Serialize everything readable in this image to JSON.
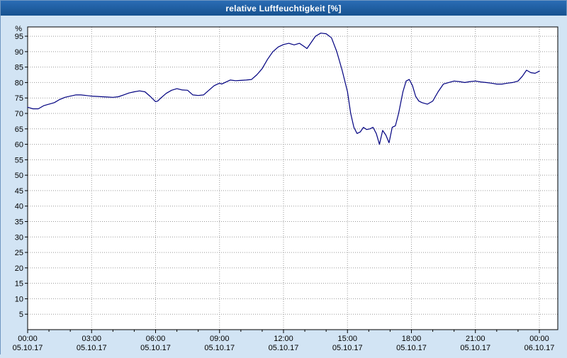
{
  "title_bar": {
    "title": "relative Luftfeuchtigkeit [%]"
  },
  "colors": {
    "title_bar_bg": "#1b5ca8",
    "title_text": "#ffffff",
    "window_bg": "#d2e4f4",
    "plot_bg": "#ffffff",
    "grid": "#999999",
    "axis": "#000000",
    "line": "#000080"
  },
  "chart_data": {
    "type": "line",
    "title": "relative Luftfeuchtigkeit [%]",
    "xlabel": "",
    "ylabel": "%",
    "ylim": [
      0,
      98
    ],
    "x_hours_range": [
      0,
      24
    ],
    "grid": true,
    "legend_position": "none",
    "yticks": [
      5,
      10,
      15,
      20,
      25,
      30,
      35,
      40,
      45,
      50,
      55,
      60,
      65,
      70,
      75,
      80,
      85,
      90,
      95
    ],
    "xticks": [
      {
        "hour": 0,
        "time": "00:00",
        "date": "05.10.17"
      },
      {
        "hour": 3,
        "time": "03:00",
        "date": "05.10.17"
      },
      {
        "hour": 6,
        "time": "06:00",
        "date": "05.10.17"
      },
      {
        "hour": 9,
        "time": "09:00",
        "date": "05.10.17"
      },
      {
        "hour": 12,
        "time": "12:00",
        "date": "05.10.17"
      },
      {
        "hour": 15,
        "time": "15:00",
        "date": "05.10.17"
      },
      {
        "hour": 18,
        "time": "18:00",
        "date": "05.10.17"
      },
      {
        "hour": 21,
        "time": "21:00",
        "date": "05.10.17"
      },
      {
        "hour": 24,
        "time": "00:00",
        "date": "06.10.17"
      }
    ],
    "series": [
      {
        "name": "relative Luftfeuchtigkeit [%]",
        "color": "#000080",
        "points": [
          [
            0,
            72
          ],
          [
            0.25,
            71.5
          ],
          [
            0.5,
            71.5
          ],
          [
            0.75,
            72.5
          ],
          [
            1,
            73
          ],
          [
            1.25,
            73.5
          ],
          [
            1.5,
            74.5
          ],
          [
            1.75,
            75.2
          ],
          [
            2,
            75.6
          ],
          [
            2.25,
            76
          ],
          [
            2.5,
            76
          ],
          [
            2.75,
            75.8
          ],
          [
            3,
            75.6
          ],
          [
            3.25,
            75.5
          ],
          [
            3.5,
            75.4
          ],
          [
            3.75,
            75.3
          ],
          [
            4,
            75.2
          ],
          [
            4.25,
            75.4
          ],
          [
            4.5,
            76
          ],
          [
            4.75,
            76.6
          ],
          [
            5,
            77
          ],
          [
            5.25,
            77.3
          ],
          [
            5.5,
            77
          ],
          [
            5.75,
            75.5
          ],
          [
            6,
            73.8
          ],
          [
            6.1,
            74
          ],
          [
            6.25,
            75
          ],
          [
            6.5,
            76.5
          ],
          [
            6.75,
            77.5
          ],
          [
            7,
            78
          ],
          [
            7.25,
            77.6
          ],
          [
            7.5,
            77.5
          ],
          [
            7.75,
            76
          ],
          [
            8,
            75.8
          ],
          [
            8.25,
            76
          ],
          [
            8.5,
            77.5
          ],
          [
            8.75,
            79
          ],
          [
            9,
            79.8
          ],
          [
            9.1,
            79.5
          ],
          [
            9.25,
            80
          ],
          [
            9.5,
            80.8
          ],
          [
            9.75,
            80.6
          ],
          [
            10,
            80.7
          ],
          [
            10.25,
            80.8
          ],
          [
            10.5,
            81
          ],
          [
            10.75,
            82.5
          ],
          [
            11,
            84.5
          ],
          [
            11.25,
            87.5
          ],
          [
            11.5,
            90
          ],
          [
            11.75,
            91.5
          ],
          [
            12,
            92.3
          ],
          [
            12.25,
            92.7
          ],
          [
            12.5,
            92.2
          ],
          [
            12.75,
            92.7
          ],
          [
            13,
            91.5
          ],
          [
            13.1,
            91
          ],
          [
            13.25,
            92.5
          ],
          [
            13.5,
            95
          ],
          [
            13.75,
            96
          ],
          [
            14,
            95.8
          ],
          [
            14.25,
            94.5
          ],
          [
            14.5,
            90
          ],
          [
            14.75,
            84
          ],
          [
            15,
            77
          ],
          [
            15.15,
            70
          ],
          [
            15.3,
            65.5
          ],
          [
            15.45,
            63.5
          ],
          [
            15.6,
            64
          ],
          [
            15.75,
            65.5
          ],
          [
            15.9,
            64.8
          ],
          [
            16.05,
            65
          ],
          [
            16.2,
            65.5
          ],
          [
            16.35,
            63.5
          ],
          [
            16.5,
            60
          ],
          [
            16.65,
            64.5
          ],
          [
            16.8,
            63
          ],
          [
            16.95,
            60.5
          ],
          [
            17.1,
            65.5
          ],
          [
            17.25,
            66
          ],
          [
            17.4,
            70
          ],
          [
            17.6,
            77
          ],
          [
            17.75,
            80.5
          ],
          [
            17.9,
            81
          ],
          [
            18.05,
            79
          ],
          [
            18.2,
            75.5
          ],
          [
            18.35,
            74
          ],
          [
            18.5,
            73.5
          ],
          [
            18.75,
            73
          ],
          [
            19,
            74
          ],
          [
            19.25,
            77
          ],
          [
            19.5,
            79.5
          ],
          [
            19.75,
            80
          ],
          [
            20,
            80.5
          ],
          [
            20.25,
            80.3
          ],
          [
            20.5,
            80
          ],
          [
            20.75,
            80.3
          ],
          [
            21,
            80.5
          ],
          [
            21.25,
            80.2
          ],
          [
            21.5,
            80
          ],
          [
            21.75,
            79.8
          ],
          [
            22,
            79.5
          ],
          [
            22.25,
            79.5
          ],
          [
            22.5,
            79.8
          ],
          [
            22.75,
            80
          ],
          [
            23,
            80.5
          ],
          [
            23.2,
            82
          ],
          [
            23.4,
            84
          ],
          [
            23.6,
            83.2
          ],
          [
            23.8,
            83
          ],
          [
            24,
            83.7
          ]
        ]
      }
    ]
  }
}
